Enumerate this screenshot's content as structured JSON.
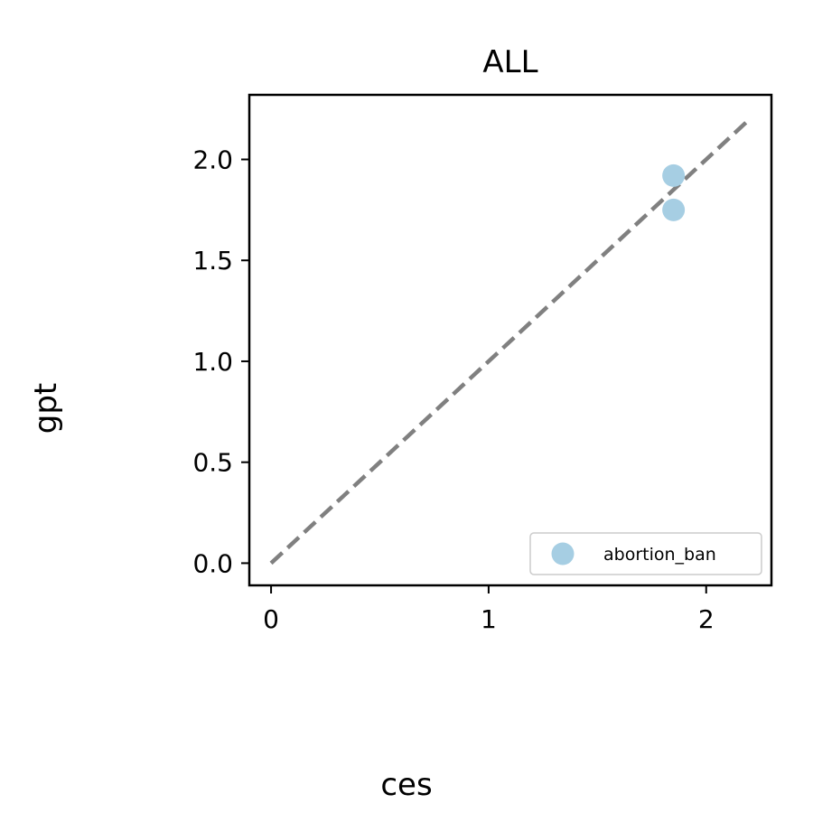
{
  "chart_data": {
    "type": "scatter",
    "title": "ALL",
    "xlabel": "ces",
    "ylabel": "gpt",
    "xlim": [
      -0.1,
      2.3
    ],
    "ylim": [
      -0.11,
      2.32
    ],
    "xticks": [
      0,
      1,
      2
    ],
    "xtick_labels": [
      "0",
      "1",
      "2"
    ],
    "yticks": [
      0.0,
      0.5,
      1.0,
      1.5,
      2.0
    ],
    "ytick_labels": [
      "0.0",
      "0.5",
      "1.0",
      "1.5",
      "2.0"
    ],
    "grid": false,
    "legend_position": "lower-right",
    "series": [
      {
        "name": "abortion_ban",
        "color": "#a6cee3",
        "points": [
          {
            "x": 1.85,
            "y": 1.92
          },
          {
            "x": 1.85,
            "y": 1.75
          }
        ]
      }
    ],
    "reference_line": {
      "style": "dashed",
      "color": "#808080",
      "from": {
        "x": 0,
        "y": 0
      },
      "to": {
        "x": 2.2,
        "y": 2.2
      }
    }
  }
}
